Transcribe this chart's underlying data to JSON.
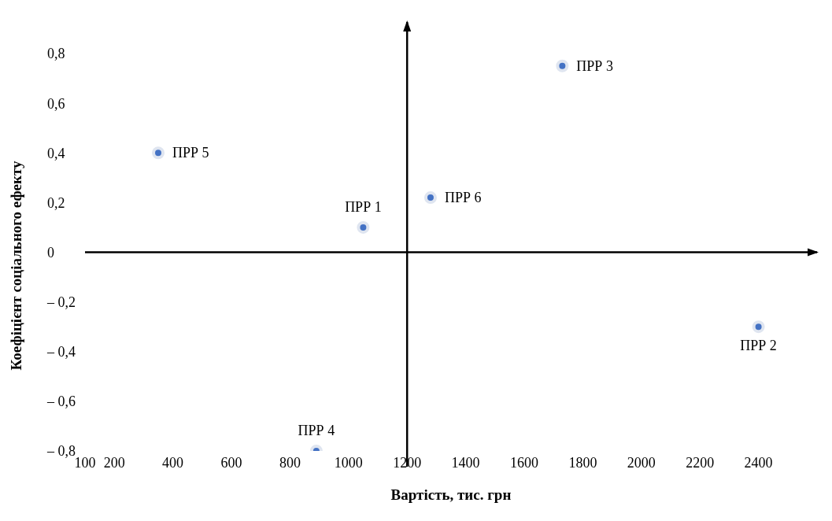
{
  "chart_data": {
    "type": "scatter",
    "xlabel": "Вартість, тис. грн",
    "ylabel": "Коефіцієнт соціального ефекту",
    "xlim": [
      100,
      2600
    ],
    "xticks": [
      100,
      200,
      400,
      600,
      800,
      1000,
      1200,
      1400,
      1600,
      1800,
      2000,
      2200,
      2400
    ],
    "ylim": [
      -0.8,
      0.8
    ],
    "yticks": [
      {
        "value": 0.8,
        "label": "0,8"
      },
      {
        "value": 0.6,
        "label": "0,6"
      },
      {
        "value": 0.4,
        "label": "0,4"
      },
      {
        "value": 0.2,
        "label": "0,2"
      },
      {
        "value": 0,
        "label": "0"
      },
      {
        "value": -0.2,
        "label": "– 0,2"
      },
      {
        "value": -0.4,
        "label": "– 0,4"
      },
      {
        "value": -0.6,
        "label": "– 0,6"
      },
      {
        "value": -0.8,
        "label": "– 0,8"
      }
    ],
    "ref_lines": [
      {
        "axis": "x",
        "value": 1200,
        "color": "#000000"
      },
      {
        "axis": "y",
        "value": 0,
        "color": "#000000"
      }
    ],
    "grid": false,
    "legend": false,
    "marker": "circle",
    "series": [
      {
        "name": "ПРР 1",
        "color": "#4472c4",
        "x": [
          1050
        ],
        "values": [
          0.1
        ]
      },
      {
        "name": "ПРР 2",
        "color": "#4472c4",
        "x": [
          2400
        ],
        "values": [
          -0.3
        ]
      },
      {
        "name": "ПРР 3",
        "color": "#4472c4",
        "x": [
          1730
        ],
        "values": [
          0.75
        ]
      },
      {
        "name": "ПРР 4",
        "color": "#4472c4",
        "x": [
          890
        ],
        "values": [
          -0.8
        ]
      },
      {
        "name": "ПРР 5",
        "color": "#4472c4",
        "x": [
          350
        ],
        "values": [
          0.4
        ]
      },
      {
        "name": "ПРР 6",
        "color": "#4472c4",
        "x": [
          1280
        ],
        "values": [
          0.22
        ]
      }
    ]
  }
}
